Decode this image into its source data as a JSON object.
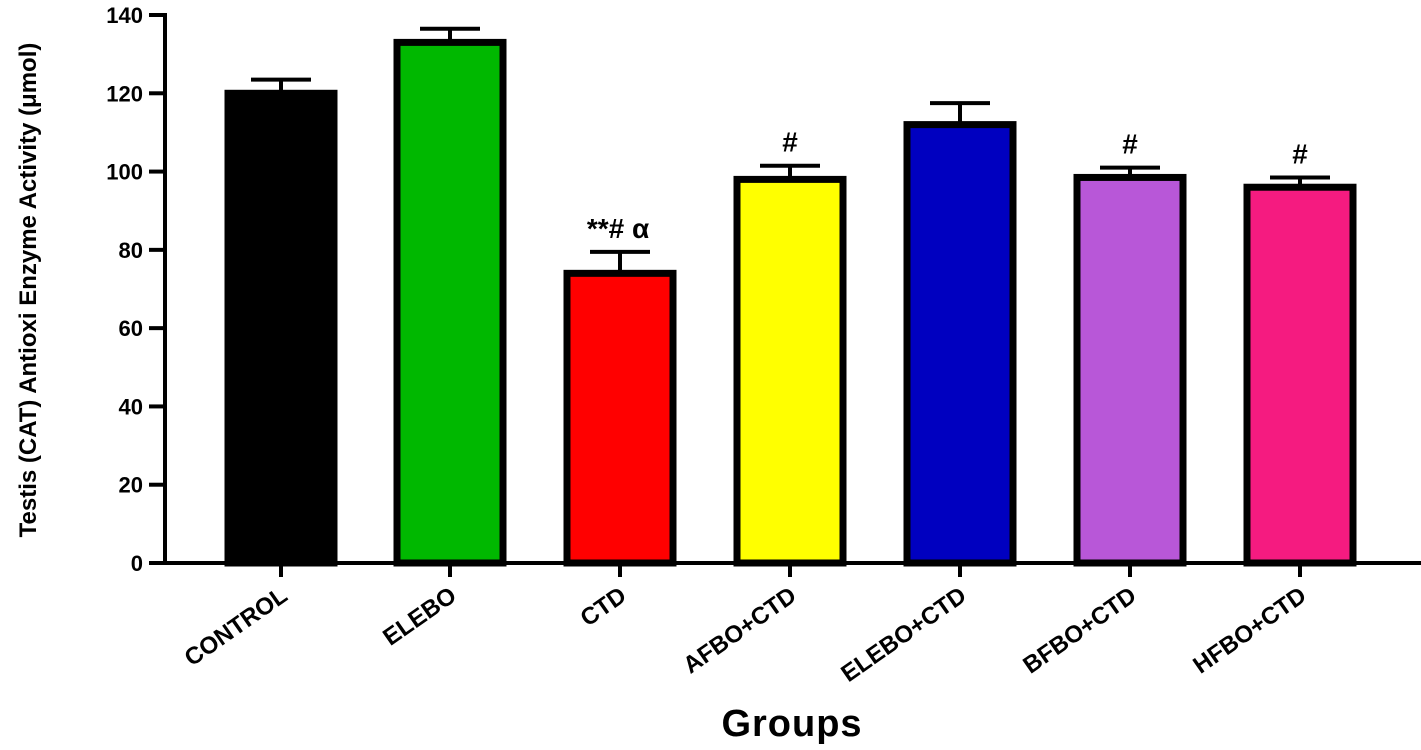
{
  "chart_data": {
    "type": "bar",
    "categories": [
      "CONTROL",
      "ELEBO",
      "CTD",
      "AFBO+CTD",
      "ELEBO+CTD",
      "BFBO+CTD",
      "HFBO+CTD"
    ],
    "values": [
      120,
      133,
      74,
      98,
      112,
      98.5,
      96
    ],
    "errors": [
      3.5,
      3.5,
      5.5,
      3.5,
      5.5,
      2.5,
      2.5
    ],
    "colors": [
      "#000000",
      "#00b800",
      "#ff0000",
      "#ffff00",
      "#0000c0",
      "#b857d8",
      "#f51b80"
    ],
    "annotations": [
      "",
      "",
      "**# α",
      "#",
      "",
      "#",
      "#"
    ],
    "ylim": [
      0,
      140
    ],
    "yticks": [
      0,
      20,
      40,
      60,
      80,
      100,
      120,
      140
    ],
    "xlabel": "Groups",
    "ylabel": "Testis (CAT) Antioxi Enzyme  Activity  (μmol)",
    "grid": false,
    "legend": "none"
  }
}
